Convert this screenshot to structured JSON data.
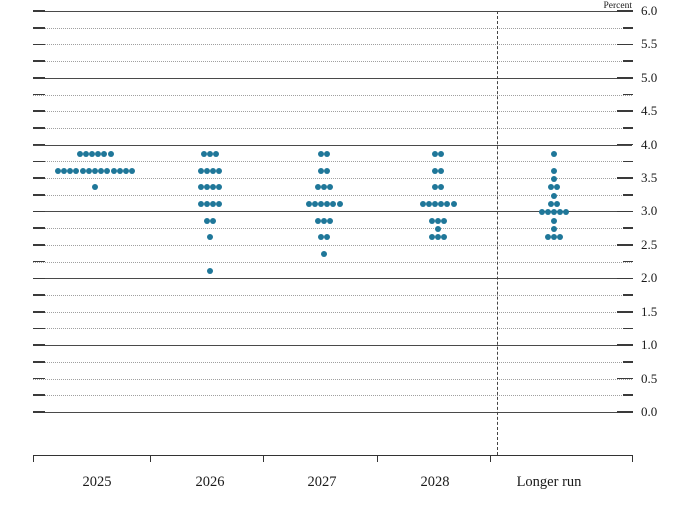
{
  "percent_label": "Percent",
  "colors": {
    "dot": "#1f7799",
    "solid_gridline": "#4a4a4a",
    "dotted_gridline": "#a0a0a0",
    "axis": "#333333",
    "label_text": "#1a1a1a"
  },
  "y_axis": {
    "min": 0.0,
    "max": 6.0,
    "label_step": 0.5,
    "minor_step": 0.25,
    "labels": [
      "6.0",
      "5.5",
      "5.0",
      "4.5",
      "4.0",
      "3.5",
      "3.0",
      "2.5",
      "2.0",
      "1.5",
      "1.0",
      "0.5",
      "0.0"
    ]
  },
  "x_axis": {
    "categories": [
      "2025",
      "2026",
      "2027",
      "2028",
      "Longer run"
    ]
  },
  "chart_data": {
    "type": "scatter",
    "ylabel": "Percent",
    "ylim": [
      0.0,
      6.0
    ],
    "grid": "solid at whole percents, dotted at quarter percents",
    "legend_position": "none",
    "categories": [
      "2025",
      "2026",
      "2027",
      "2028",
      "Longer run"
    ],
    "series": [
      {
        "category": "2025",
        "dots": [
          {
            "rate": 3.875,
            "count": 6
          },
          {
            "rate": 3.625,
            "count": 13
          },
          {
            "rate": 3.375,
            "count": 1
          }
        ]
      },
      {
        "category": "2026",
        "dots": [
          {
            "rate": 3.875,
            "count": 3
          },
          {
            "rate": 3.625,
            "count": 4
          },
          {
            "rate": 3.375,
            "count": 4
          },
          {
            "rate": 3.125,
            "count": 4
          },
          {
            "rate": 2.875,
            "count": 2
          },
          {
            "rate": 2.625,
            "count": 1
          },
          {
            "rate": 2.125,
            "count": 1
          }
        ]
      },
      {
        "category": "2027",
        "dots": [
          {
            "rate": 3.875,
            "count": 2
          },
          {
            "rate": 3.625,
            "count": 2
          },
          {
            "rate": 3.375,
            "count": 3
          },
          {
            "rate": 3.125,
            "count": 6
          },
          {
            "rate": 2.875,
            "count": 3
          },
          {
            "rate": 2.625,
            "count": 2
          },
          {
            "rate": 2.375,
            "count": 1
          }
        ]
      },
      {
        "category": "2028",
        "dots": [
          {
            "rate": 3.875,
            "count": 2
          },
          {
            "rate": 3.625,
            "count": 2
          },
          {
            "rate": 3.375,
            "count": 2
          },
          {
            "rate": 3.125,
            "count": 6
          },
          {
            "rate": 2.875,
            "count": 3
          },
          {
            "rate": 2.75,
            "count": 1
          },
          {
            "rate": 2.625,
            "count": 3
          }
        ]
      },
      {
        "category": "Longer run",
        "dots": [
          {
            "rate": 3.875,
            "count": 1
          },
          {
            "rate": 3.625,
            "count": 1
          },
          {
            "rate": 3.5,
            "count": 1
          },
          {
            "rate": 3.375,
            "count": 2
          },
          {
            "rate": 3.25,
            "count": 1
          },
          {
            "rate": 3.125,
            "count": 2
          },
          {
            "rate": 3.0,
            "count": 5
          },
          {
            "rate": 2.875,
            "count": 1
          },
          {
            "rate": 2.75,
            "count": 1
          },
          {
            "rate": 2.625,
            "count": 3
          }
        ]
      }
    ]
  }
}
